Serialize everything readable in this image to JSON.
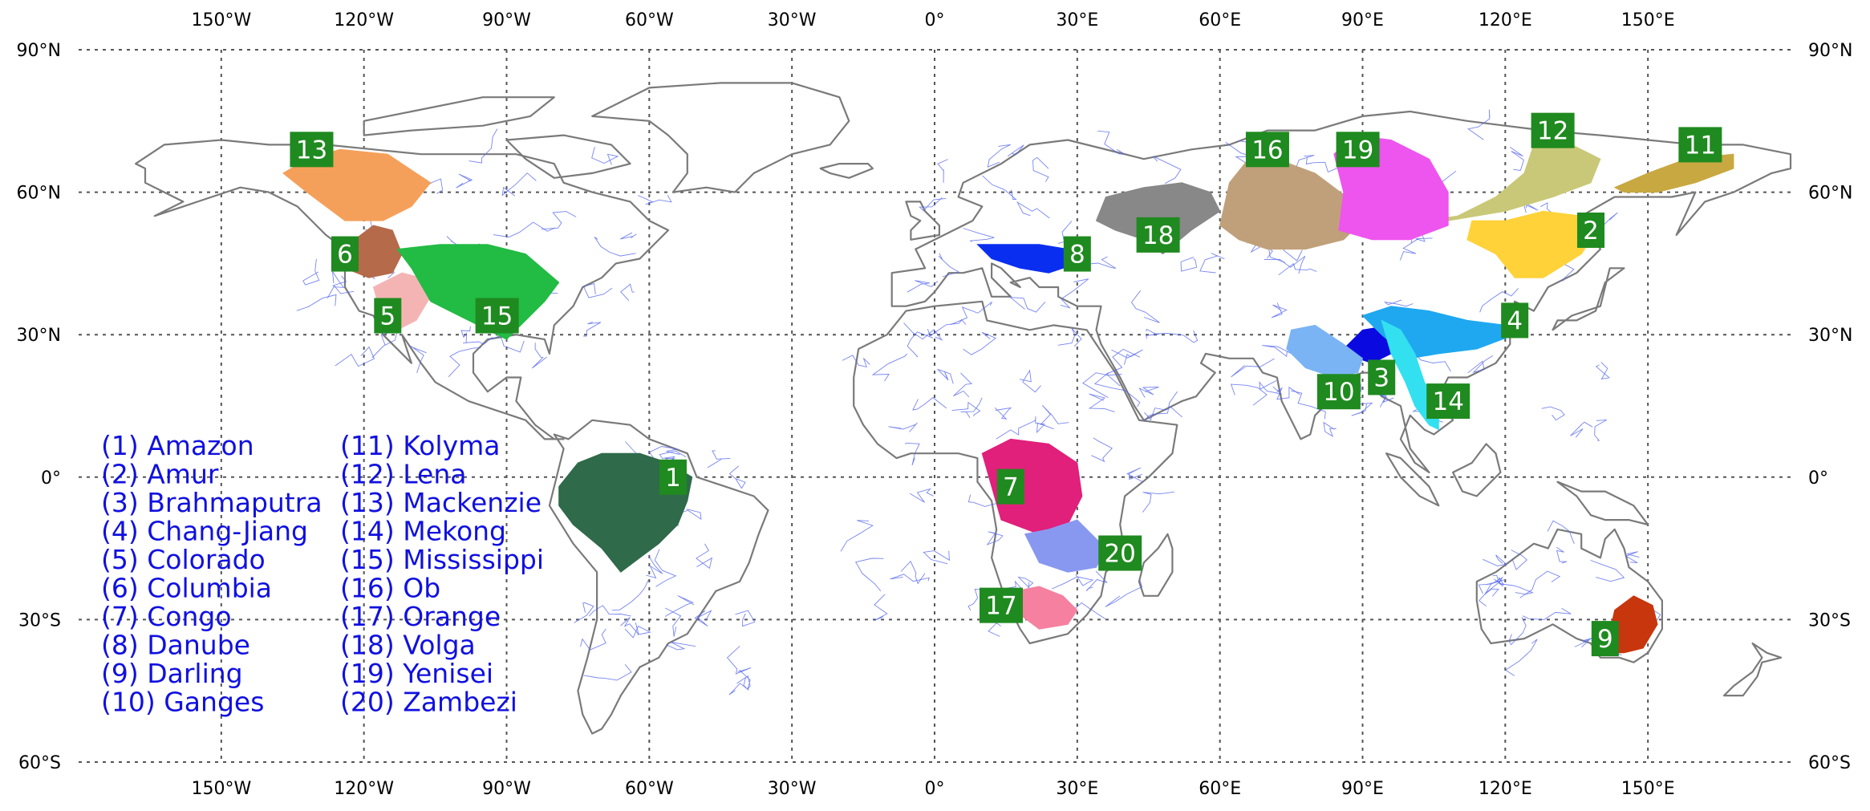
{
  "axes": {
    "lon_ticks": [
      {
        "lon": -150,
        "label": "150°W"
      },
      {
        "lon": -120,
        "label": "120°W"
      },
      {
        "lon": -90,
        "label": "90°W"
      },
      {
        "lon": -60,
        "label": "60°W"
      },
      {
        "lon": -30,
        "label": "30°W"
      },
      {
        "lon": 0,
        "label": "0°"
      },
      {
        "lon": 30,
        "label": "30°E"
      },
      {
        "lon": 60,
        "label": "60°E"
      },
      {
        "lon": 90,
        "label": "90°E"
      },
      {
        "lon": 120,
        "label": "120°E"
      },
      {
        "lon": 150,
        "label": "150°E"
      }
    ],
    "lat_ticks": [
      {
        "lat": 90,
        "label": "90°N"
      },
      {
        "lat": 60,
        "label": "60°N"
      },
      {
        "lat": 30,
        "label": "30°N"
      },
      {
        "lat": 0,
        "label": "0°"
      },
      {
        "lat": -30,
        "label": "30°S"
      },
      {
        "lat": -60,
        "label": "60°S"
      }
    ],
    "lon_range": [
      -180,
      180
    ],
    "lat_range": [
      -60,
      90
    ],
    "grid": true
  },
  "basins": [
    {
      "id": 1,
      "name": "Amazon",
      "color": "#2f6a4a",
      "label_lon": -55,
      "label_lat": 0
    },
    {
      "id": 2,
      "name": "Amur",
      "color": "#ffd23a",
      "label_lon": 138,
      "label_lat": 52
    },
    {
      "id": 3,
      "name": "Brahmaputra",
      "color": "#0a0ae0",
      "label_lon": 94,
      "label_lat": 21
    },
    {
      "id": 4,
      "name": "Chang-Jiang",
      "color": "#1fa8f0",
      "label_lon": 122,
      "label_lat": 33
    },
    {
      "id": 5,
      "name": "Colorado",
      "color": "#f5b4b4",
      "label_lon": -115,
      "label_lat": 34
    },
    {
      "id": 6,
      "name": "Columbia",
      "color": "#b56a4a",
      "label_lon": -124,
      "label_lat": 47
    },
    {
      "id": 7,
      "name": "Congo",
      "color": "#e0207a",
      "label_lon": 16,
      "label_lat": -2
    },
    {
      "id": 8,
      "name": "Danube",
      "color": "#0a2ef0",
      "label_lon": 30,
      "label_lat": 47
    },
    {
      "id": 9,
      "name": "Darling",
      "color": "#c8360e",
      "label_lon": 141,
      "label_lat": -34
    },
    {
      "id": 10,
      "name": "Ganges",
      "color": "#7ab4f5",
      "label_lon": 85,
      "label_lat": 18
    },
    {
      "id": 11,
      "name": "Kolyma",
      "color": "#c8a840",
      "label_lon": 161,
      "label_lat": 70
    },
    {
      "id": 12,
      "name": "Lena",
      "color": "#c8c878",
      "label_lon": 130,
      "label_lat": 73
    },
    {
      "id": 13,
      "name": "Mackenzie",
      "color": "#f5a05a",
      "label_lon": -131,
      "label_lat": 69
    },
    {
      "id": 14,
      "name": "Mekong",
      "color": "#33e0f0",
      "label_lon": 108,
      "label_lat": 16
    },
    {
      "id": 15,
      "name": "Mississippi",
      "color": "#22bb44",
      "label_lon": -92,
      "label_lat": 34
    },
    {
      "id": 16,
      "name": "Ob",
      "color": "#c0a07a",
      "label_lon": 70,
      "label_lat": 69
    },
    {
      "id": 17,
      "name": "Orange",
      "color": "#f580a0",
      "label_lon": 14,
      "label_lat": -27
    },
    {
      "id": 18,
      "name": "Volga",
      "color": "#888888",
      "label_lon": 47,
      "label_lat": 51
    },
    {
      "id": 19,
      "name": "Yenisei",
      "color": "#ee55ee",
      "label_lon": 89,
      "label_lat": 69
    },
    {
      "id": 20,
      "name": "Zambezi",
      "color": "#8898f0",
      "label_lon": 39,
      "label_lat": -16
    }
  ],
  "legend": {
    "column1": [
      "(1) Amazon",
      "(2) Amur",
      "(3) Brahmaputra",
      "(4) Chang-Jiang",
      "(5) Colorado",
      "(6) Columbia",
      "(7) Congo",
      "(8) Danube",
      "(9) Darling",
      "(10) Ganges"
    ],
    "column2": [
      "(11) Kolyma",
      "(12) Lena",
      "(13) Mackenzie",
      "(14) Mekong",
      "(15) Mississippi",
      "(16) Ob",
      "(17) Orange",
      "(18) Volga",
      "(19) Yenisei",
      "(20) Zambezi"
    ],
    "color": "#1010e0"
  },
  "style": {
    "label_box_color": "#1f8a1f",
    "coast_color": "#7a7a7a",
    "river_color": "#5566ee",
    "grid_color": "#555555"
  }
}
